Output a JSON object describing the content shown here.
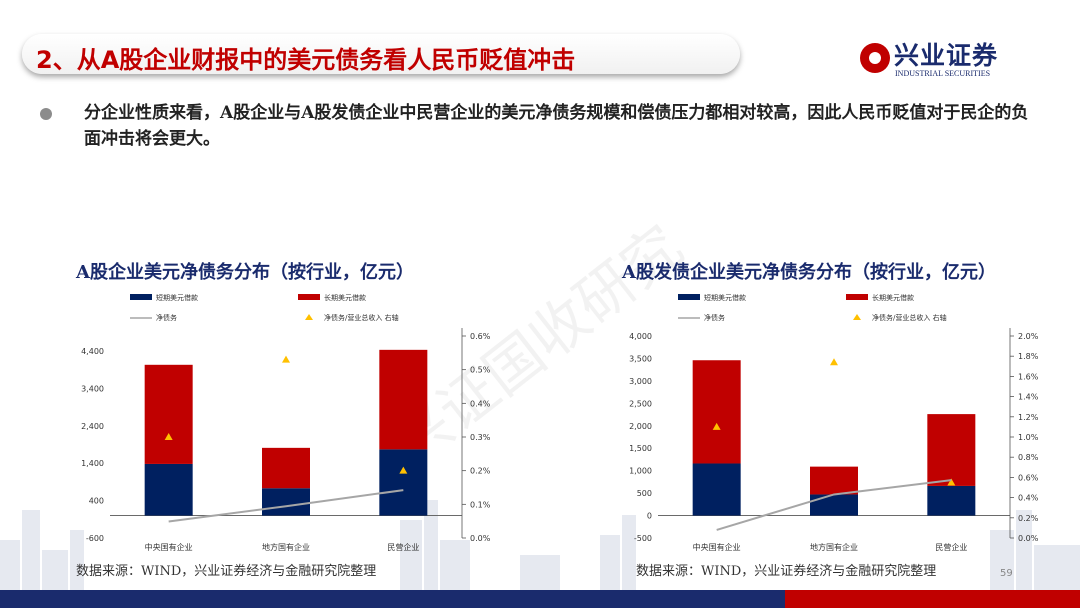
{
  "header": {
    "title": "2、从A股企业财报中的美元债务看人民币贬值冲击",
    "logo_cn": "兴业证券",
    "logo_en": "INDUSTRIAL SECURITIES"
  },
  "bullet": "分企业性质来看，A股企业与A股发债企业中民营企业的美元净债务规模和偿债压力都相对较高，因此人民币贬值对于民企的负面冲击将会更大。",
  "watermark": "兴证国收研究",
  "page_number": "59",
  "colors": {
    "navy": "#002060",
    "red": "#c00000",
    "line": "#a6a6a6",
    "triangle": "#ffc000"
  },
  "chart_data": [
    {
      "type": "bar",
      "title": "A股企业美元净债务分布（按行业，亿元）",
      "source": "数据来源：WIND，兴业证券经济与金融研究院整理",
      "categories": [
        "中央国有企业",
        "地方国有企业",
        "民营企业"
      ],
      "legend": [
        "短期美元借款",
        "长期美元借款",
        "净债务",
        "净债务/营业总收入 右轴"
      ],
      "series": [
        {
          "name": "短期美元借款",
          "values": [
            1380,
            730,
            1770
          ]
        },
        {
          "name": "长期美元借款",
          "values": [
            2650,
            1080,
            2660
          ]
        },
        {
          "name": "净债务",
          "values": [
            -160,
            250,
            680
          ]
        },
        {
          "name": "净债务/营业总收入 右轴",
          "values": [
            0.3,
            0.53,
            0.2
          ]
        }
      ],
      "ylim": [
        -600,
        4800
      ],
      "y_ticks": [
        "4,400",
        "3,400",
        "2,400",
        "1,400",
        "400",
        "-600"
      ],
      "y2lim": [
        0,
        0.6
      ],
      "y2_ticks": [
        "0.6%",
        "0.5%",
        "0.4%",
        "0.3%",
        "0.2%",
        "0.1%",
        "0.0%"
      ]
    },
    {
      "type": "bar",
      "title": "A股发债企业美元净债务分布（按行业，亿元）",
      "source": "数据来源：WIND，兴业证券经济与金融研究院整理",
      "categories": [
        "中央国有企业",
        "地方国有企业",
        "民营企业"
      ],
      "legend": [
        "短期美元借款",
        "长期美元借款",
        "净债务",
        "净债务/营业总收入 右轴"
      ],
      "series": [
        {
          "name": "短期美元借款",
          "values": [
            1160,
            470,
            660
          ]
        },
        {
          "name": "长期美元借款",
          "values": [
            2300,
            620,
            1600
          ]
        },
        {
          "name": "净债务",
          "values": [
            -320,
            470,
            790
          ]
        },
        {
          "name": "净债务/营业总收入 右轴",
          "values": [
            1.1,
            1.74,
            0.55
          ]
        }
      ],
      "ylim": [
        -500,
        4000
      ],
      "y_ticks": [
        "4,000",
        "3,500",
        "3,000",
        "2,500",
        "2,000",
        "1,500",
        "1,000",
        "500",
        "0",
        "-500"
      ],
      "y2lim": [
        0,
        2.0
      ],
      "y2_ticks": [
        "2.0%",
        "1.8%",
        "1.6%",
        "1.4%",
        "1.2%",
        "1.0%",
        "0.8%",
        "0.6%",
        "0.4%",
        "0.2%",
        "0.0%"
      ]
    }
  ]
}
